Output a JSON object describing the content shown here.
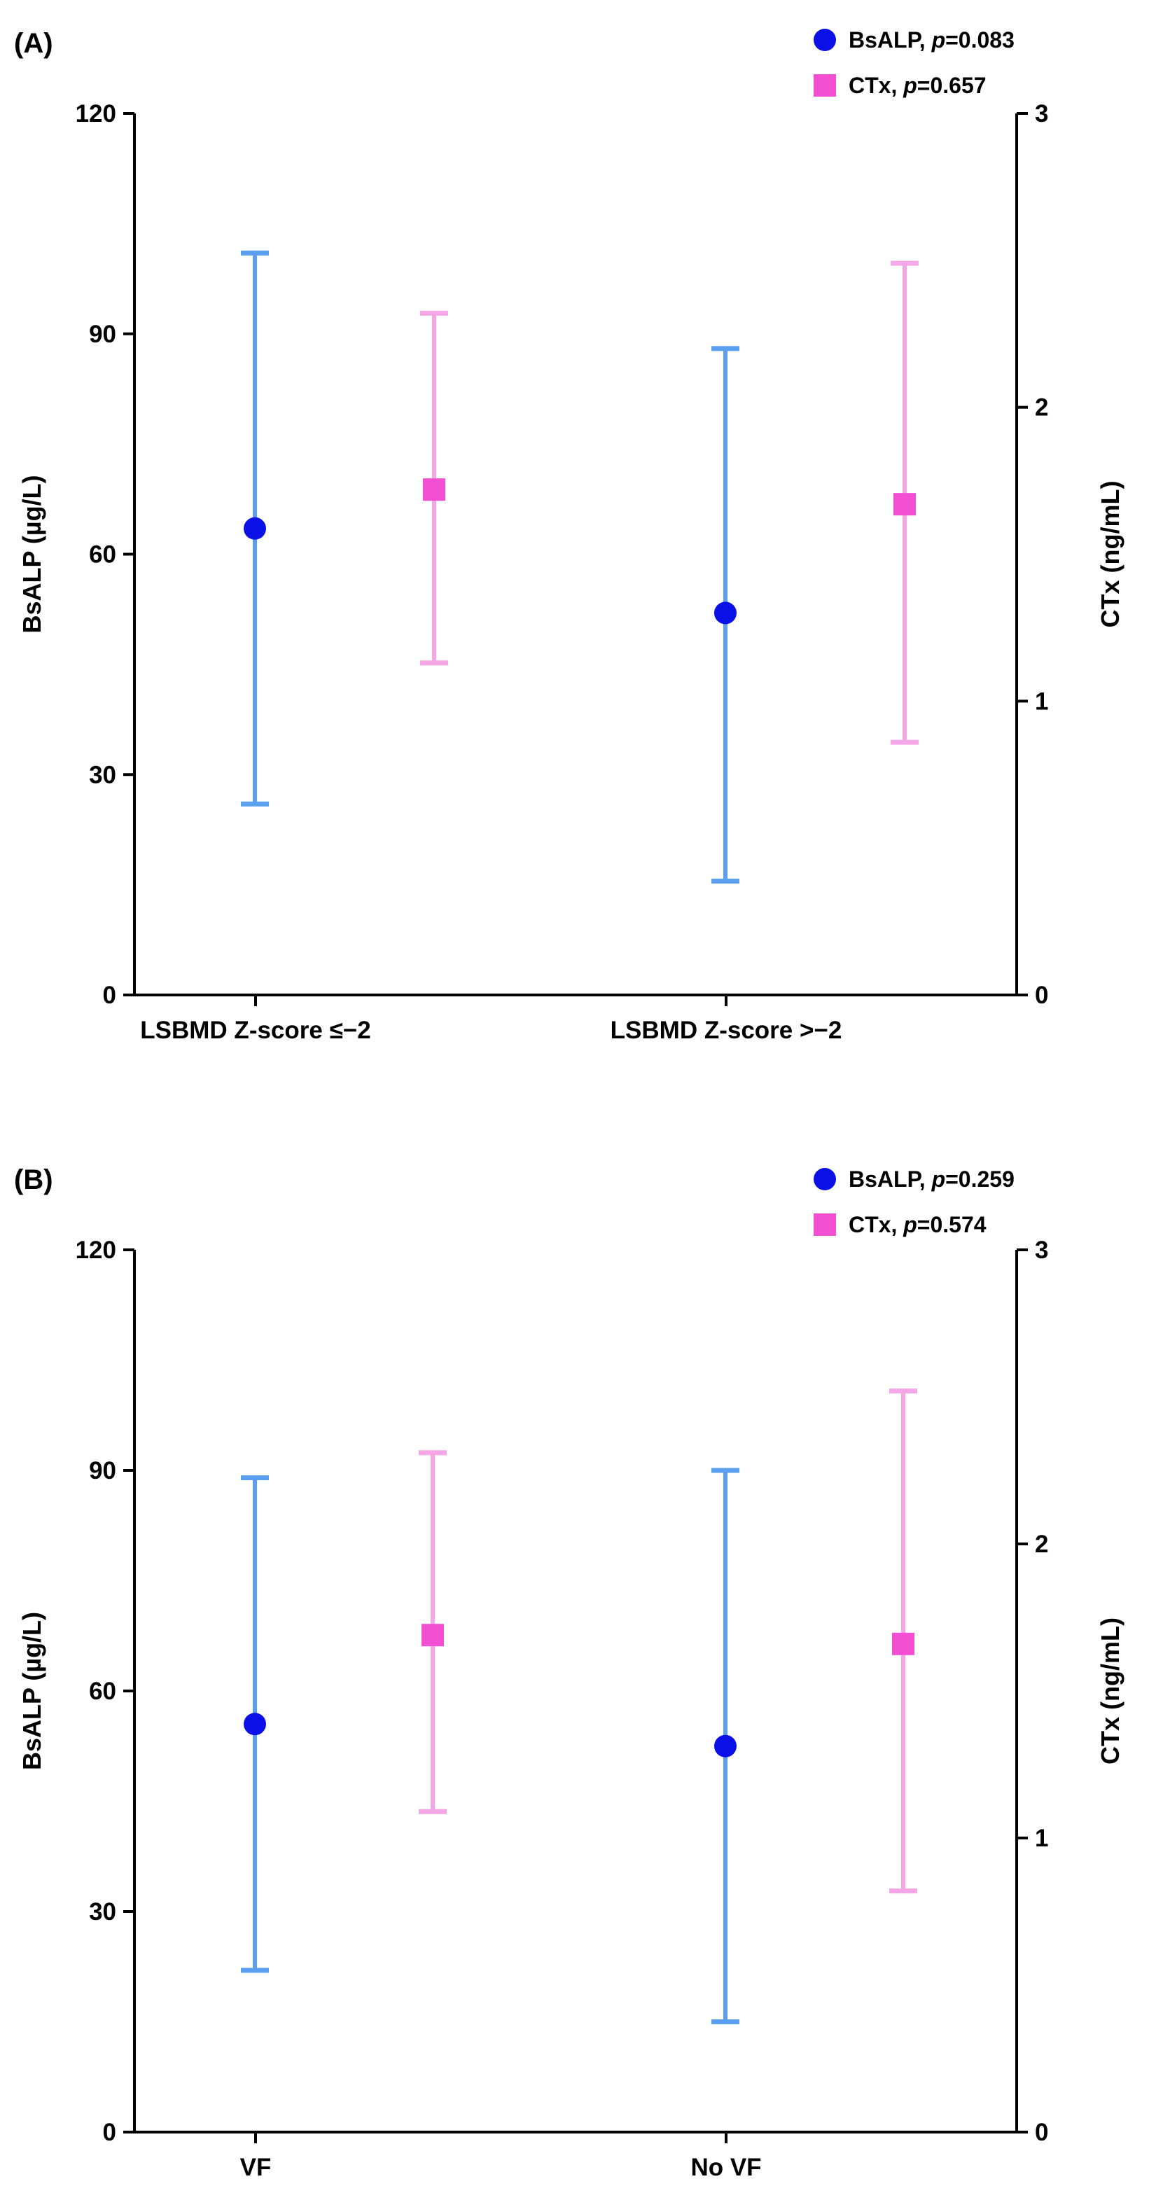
{
  "chart_data": [
    {
      "type": "scatter",
      "panel_label": "(A)",
      "categories": [
        "LSBMD Z-score ≤−2",
        "LSBMD Z-score >−2"
      ],
      "ylabel": "BsALP (µg/L)",
      "y2label": "CTx (ng/mL)",
      "ylim": [
        0,
        120
      ],
      "y2lim": [
        0,
        3
      ],
      "yticks": [
        0,
        30,
        60,
        90,
        120
      ],
      "y2ticks": [
        0,
        1,
        2,
        3
      ],
      "legend_position": "top-right",
      "series": [
        {
          "name": "BsALP",
          "p_label": "p",
          "p_value": "=0.083",
          "axis": "left",
          "marker": "circle",
          "marker_color": "#0a10e6",
          "bar_color": "#5a9ff0",
          "mean": [
            63.5,
            52
          ],
          "lower": [
            26,
            15.5
          ],
          "upper": [
            101,
            88
          ]
        },
        {
          "name": "CTx",
          "p_label": "p",
          "p_value": "=0.657",
          "axis": "right",
          "marker": "square",
          "marker_color": "#f24fd3",
          "bar_color": "#f4a6e6",
          "mean": [
            1.72,
            1.67
          ],
          "lower": [
            1.13,
            0.86
          ],
          "upper": [
            2.32,
            2.49
          ]
        }
      ]
    },
    {
      "type": "scatter",
      "panel_label": "(B)",
      "categories": [
        "VF",
        "No VF"
      ],
      "ylabel": "BsALP (µg/L)",
      "y2label": "CTx (ng/mL)",
      "ylim": [
        0,
        120
      ],
      "y2lim": [
        0,
        3
      ],
      "yticks": [
        0,
        30,
        60,
        90,
        120
      ],
      "y2ticks": [
        0,
        1,
        2,
        3
      ],
      "legend_position": "top-right",
      "series": [
        {
          "name": "BsALP",
          "p_label": "p",
          "p_value": "=0.259",
          "axis": "left",
          "marker": "circle",
          "marker_color": "#0a10e6",
          "bar_color": "#5a9ff0",
          "mean": [
            55.5,
            52.5
          ],
          "lower": [
            22,
            15
          ],
          "upper": [
            89,
            90
          ]
        },
        {
          "name": "CTx",
          "p_label": "p",
          "p_value": "=0.574",
          "axis": "right",
          "marker": "square",
          "marker_color": "#f24fd3",
          "bar_color": "#f4a6e6",
          "mean": [
            1.69,
            1.66
          ],
          "lower": [
            1.09,
            0.82
          ],
          "upper": [
            2.31,
            2.52
          ]
        }
      ]
    }
  ]
}
